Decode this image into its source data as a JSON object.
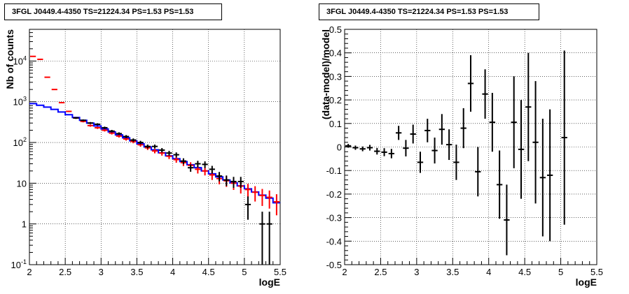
{
  "chart_data": [
    {
      "type": "step",
      "title": "3FGL J0449.4-4350 TS=21224.34 PS=1.53 PS=1.53",
      "xlabel": "logE",
      "ylabel": "Nb of counts",
      "xlim": [
        2,
        5.5
      ],
      "ylim": [
        0.1,
        60000
      ],
      "yscale": "log",
      "grid": true,
      "x_ticks": [
        "2",
        "2.5",
        "3",
        "3.5",
        "4",
        "4.5",
        "5",
        "5.5"
      ],
      "y_ticks": [
        "10^-1",
        "1",
        "10",
        "10^2",
        "10^3",
        "10^4"
      ],
      "bin_edges": [
        2.0,
        2.1,
        2.2,
        2.3,
        2.4,
        2.5,
        2.6,
        2.7,
        2.8,
        2.9,
        3.0,
        3.1,
        3.2,
        3.3,
        3.4,
        3.5,
        3.6,
        3.7,
        3.8,
        3.9,
        4.0,
        4.1,
        4.2,
        4.3,
        4.4,
        4.5,
        4.6,
        4.7,
        4.8,
        4.9,
        5.0,
        5.1,
        5.2,
        5.3,
        5.4,
        5.5
      ],
      "series": [
        {
          "name": "",
          "color": "#0000ff",
          "style": "step",
          "values": [
            900,
            820,
            740,
            650,
            560,
            480,
            410,
            350,
            300,
            255,
            215,
            182,
            154,
            130,
            110,
            93,
            78,
            66,
            56,
            47,
            40,
            34,
            28.5,
            24,
            20,
            17,
            14.3,
            12,
            10.2,
            8.6,
            7.3,
            6.1,
            5.1,
            4.3,
            3.3
          ]
        },
        {
          "name": "",
          "color": "#ff0000",
          "style": "errorbar",
          "values": [
            13000,
            11000,
            4000,
            2000,
            950,
            580,
            400,
            330,
            260,
            230,
            200,
            170,
            144,
            122,
            106,
            88,
            74,
            62,
            55,
            46,
            38,
            32,
            27.5,
            22,
            20,
            16,
            13,
            11.5,
            10,
            8.5,
            7,
            6,
            5,
            4.5,
            3.5
          ]
        },
        {
          "name": "",
          "color": "#000000",
          "style": "errorbar",
          "values": [
            null,
            null,
            null,
            null,
            null,
            null,
            400,
            350,
            300,
            280,
            230,
            190,
            165,
            140,
            115,
            100,
            80,
            80,
            65,
            55,
            50,
            35,
            24,
            30,
            29,
            22,
            15,
            12,
            11,
            11,
            3,
            null,
            1,
            1,
            null
          ]
        }
      ]
    },
    {
      "type": "errorbar",
      "title": "3FGL J0449.4-4350 TS=21224.34 PS=1.53 PS=1.53",
      "xlabel": "logE",
      "ylabel": "(data-model)/model",
      "xlim": [
        2,
        5.5
      ],
      "ylim": [
        -0.5,
        0.5
      ],
      "grid": true,
      "x_ticks": [
        "2",
        "2.5",
        "3",
        "3.5",
        "4",
        "4.5",
        "5",
        "5.5"
      ],
      "y_ticks": [
        "-0.5",
        "-0.4",
        "-0.3",
        "-0.2",
        "-0.1",
        "0",
        "0.1",
        "0.2",
        "0.3",
        "0.4",
        "0.5"
      ],
      "points": [
        {
          "x": 2.05,
          "y": 0.005,
          "err": 0.008
        },
        {
          "x": 2.15,
          "y": -0.003,
          "err": 0.009
        },
        {
          "x": 2.25,
          "y": -0.008,
          "err": 0.01
        },
        {
          "x": 2.35,
          "y": -0.003,
          "err": 0.012
        },
        {
          "x": 2.45,
          "y": -0.018,
          "err": 0.014
        },
        {
          "x": 2.55,
          "y": -0.022,
          "err": 0.017
        },
        {
          "x": 2.65,
          "y": -0.028,
          "err": 0.02
        },
        {
          "x": 2.75,
          "y": 0.06,
          "err": 0.03
        },
        {
          "x": 2.85,
          "y": -0.005,
          "err": 0.035
        },
        {
          "x": 2.95,
          "y": 0.055,
          "err": 0.04
        },
        {
          "x": 3.05,
          "y": -0.065,
          "err": 0.045
        },
        {
          "x": 3.15,
          "y": 0.07,
          "err": 0.05
        },
        {
          "x": 3.25,
          "y": -0.015,
          "err": 0.055
        },
        {
          "x": 3.35,
          "y": 0.075,
          "err": 0.065
        },
        {
          "x": 3.45,
          "y": 0.01,
          "err": 0.065
        },
        {
          "x": 3.55,
          "y": -0.065,
          "err": 0.075
        },
        {
          "x": 3.65,
          "y": 0.08,
          "err": 0.085
        },
        {
          "x": 3.75,
          "y": 0.27,
          "err": 0.12
        },
        {
          "x": 3.85,
          "y": -0.105,
          "err": 0.105
        },
        {
          "x": 3.95,
          "y": 0.225,
          "err": 0.105
        },
        {
          "x": 4.05,
          "y": 0.105,
          "err": 0.125
        },
        {
          "x": 4.15,
          "y": -0.16,
          "err": 0.145
        },
        {
          "x": 4.25,
          "y": -0.31,
          "err": 0.15
        },
        {
          "x": 4.35,
          "y": 0.105,
          "err": 0.195
        },
        {
          "x": 4.45,
          "y": -0.01,
          "err": 0.21
        },
        {
          "x": 4.55,
          "y": 0.17,
          "err": 0.23
        },
        {
          "x": 4.65,
          "y": 0.02,
          "err": 0.26
        },
        {
          "x": 4.75,
          "y": -0.13,
          "err": 0.25
        },
        {
          "x": 4.85,
          "y": -0.12,
          "err": 0.28
        },
        {
          "x": 5.05,
          "y": 0.04,
          "err": 0.37
        }
      ]
    }
  ]
}
